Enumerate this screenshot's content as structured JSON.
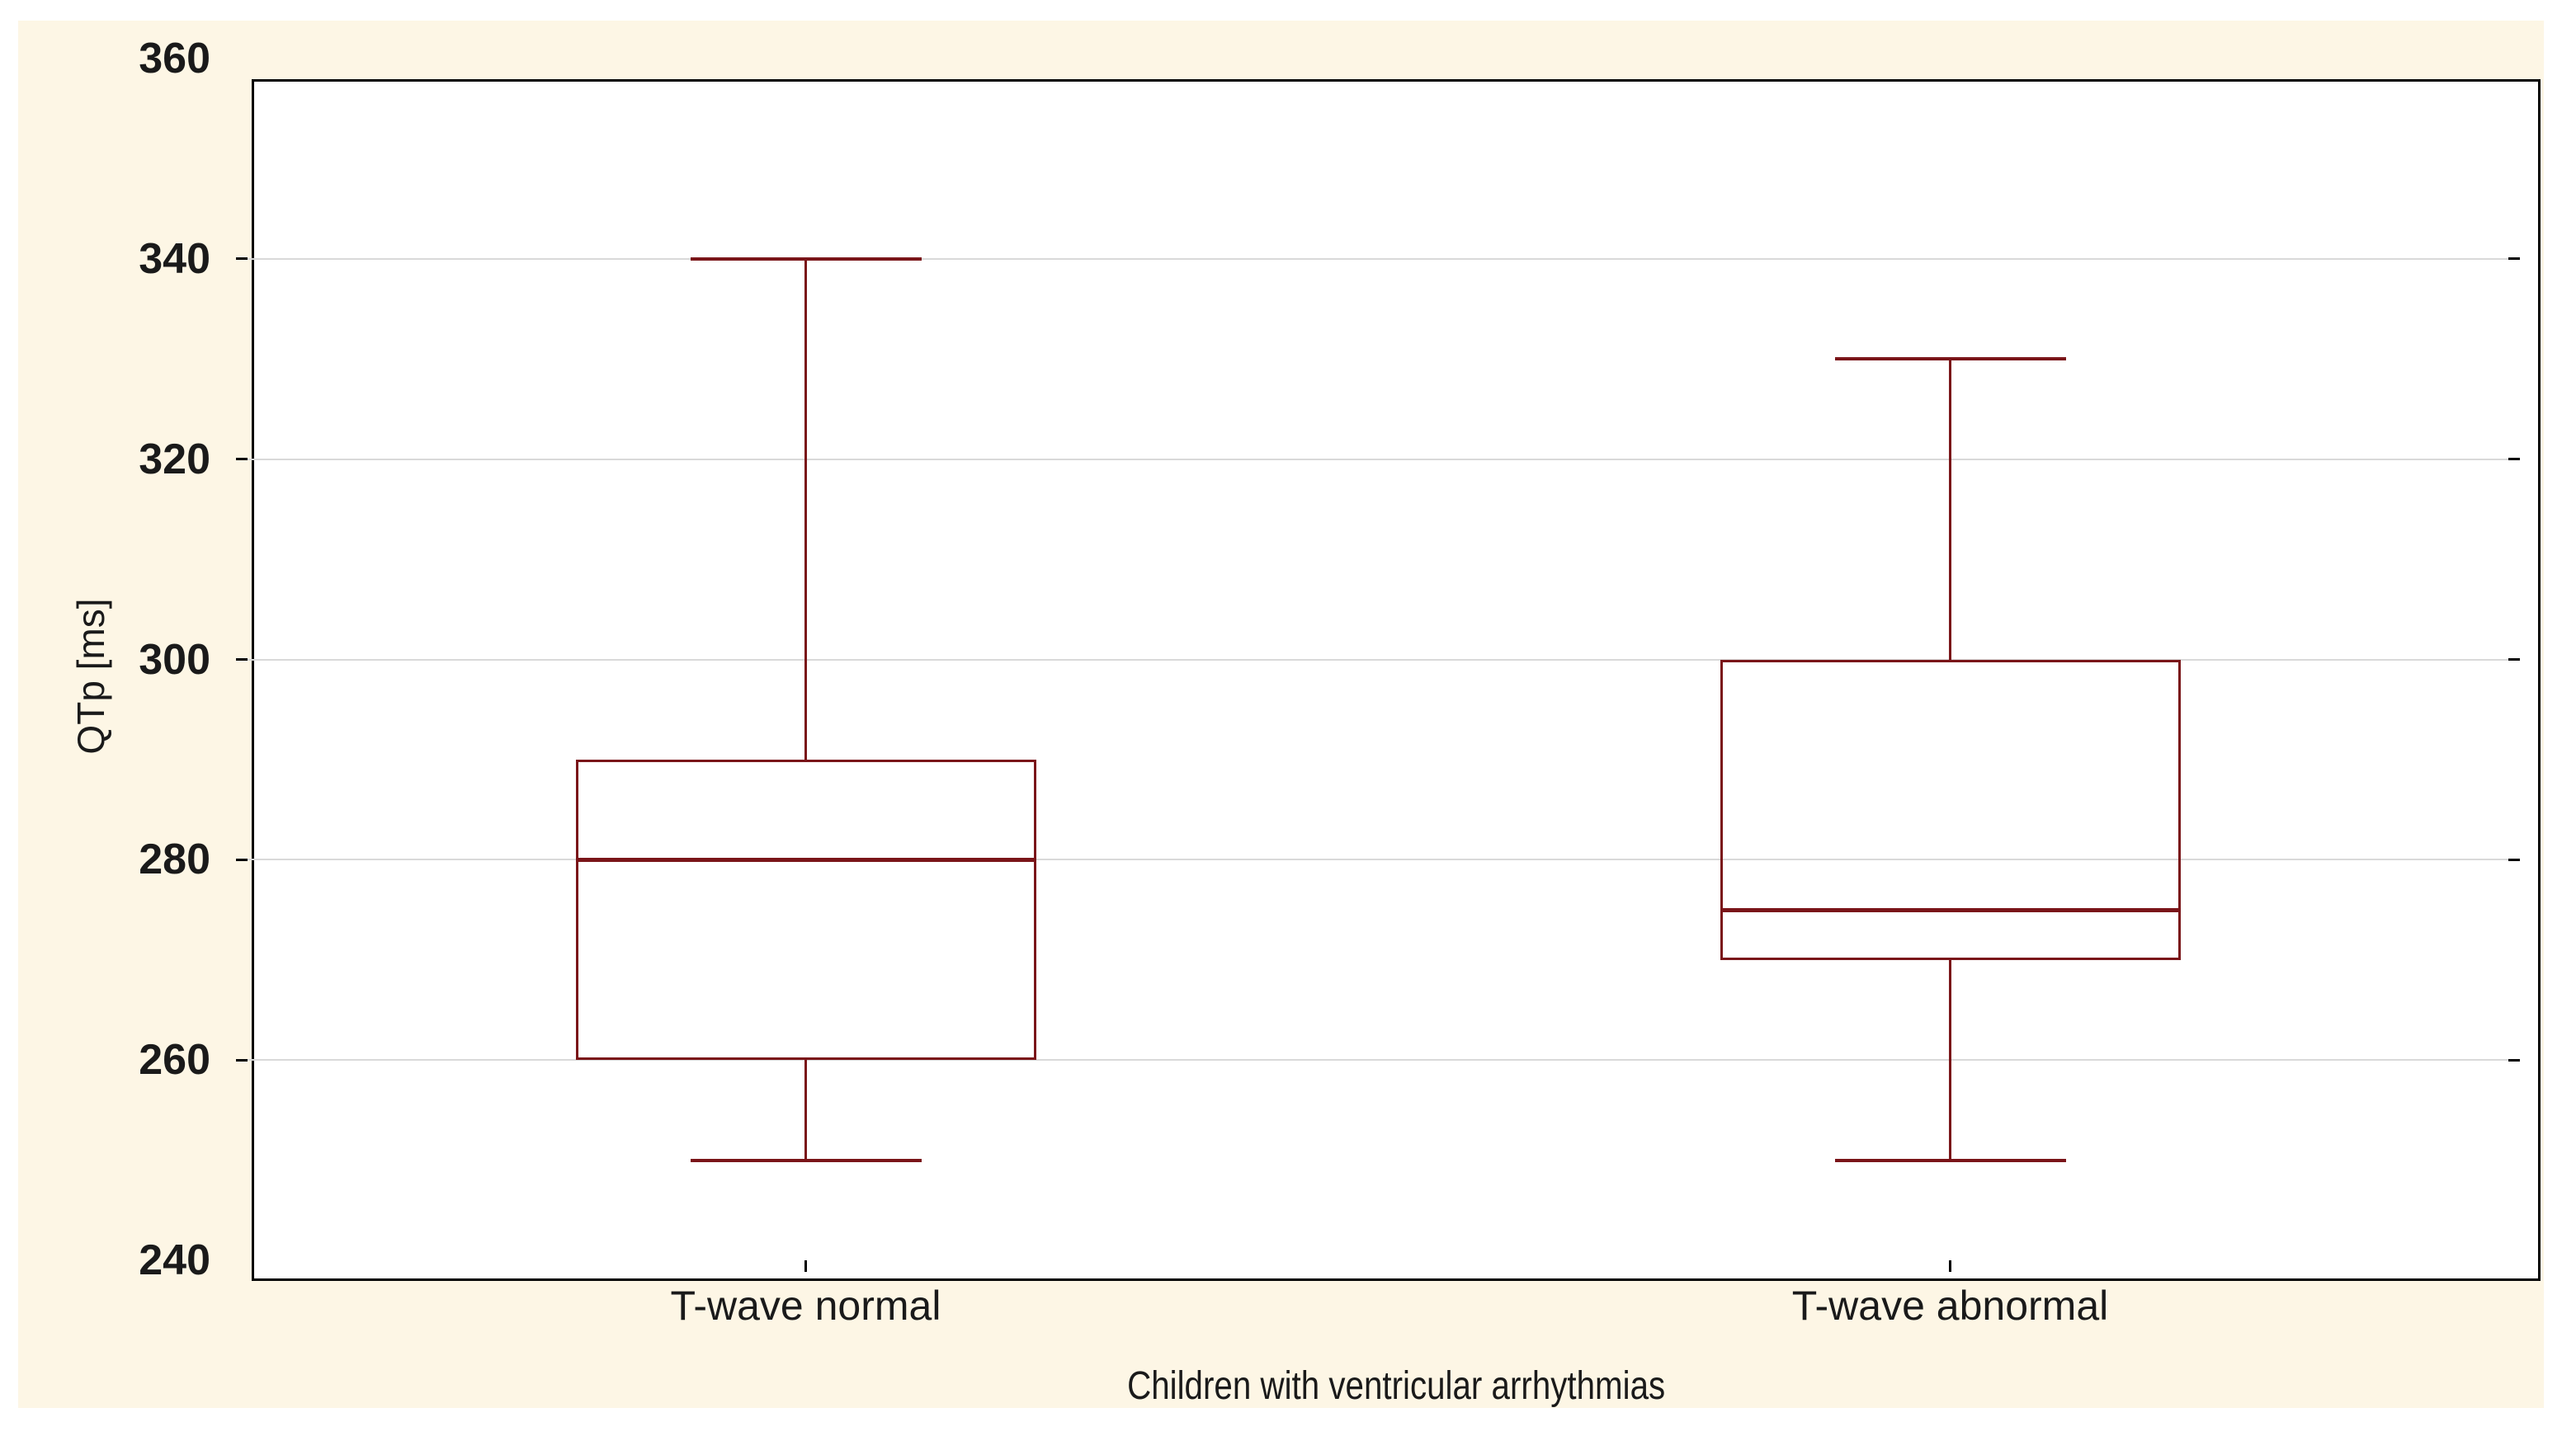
{
  "chart_data": {
    "type": "box",
    "title": "",
    "xlabel": "Children with ventricular arrhythmias",
    "ylabel": "QTp [ms]",
    "ylim": [
      240,
      360
    ],
    "yticks": [
      240,
      260,
      280,
      300,
      320,
      340,
      360
    ],
    "categories": [
      "T-wave normal",
      "T-wave abnormal"
    ],
    "series": [
      {
        "name": "T-wave normal",
        "whisker_low": 250,
        "q1": 260,
        "median": 280,
        "q3": 290,
        "whisker_high": 340
      },
      {
        "name": "T-wave abnormal",
        "whisker_low": 250,
        "q1": 270,
        "median": 275,
        "q3": 300,
        "whisker_high": 330
      }
    ],
    "grid": "horizontal",
    "legend": "none",
    "colors": {
      "box_stroke": "#7A1519",
      "gridline": "#D9D9D9",
      "frame": "#000000",
      "canvas_background": "#FDF6E5",
      "plot_background": "#FFFFFF",
      "text": "#1A1A1A"
    }
  }
}
